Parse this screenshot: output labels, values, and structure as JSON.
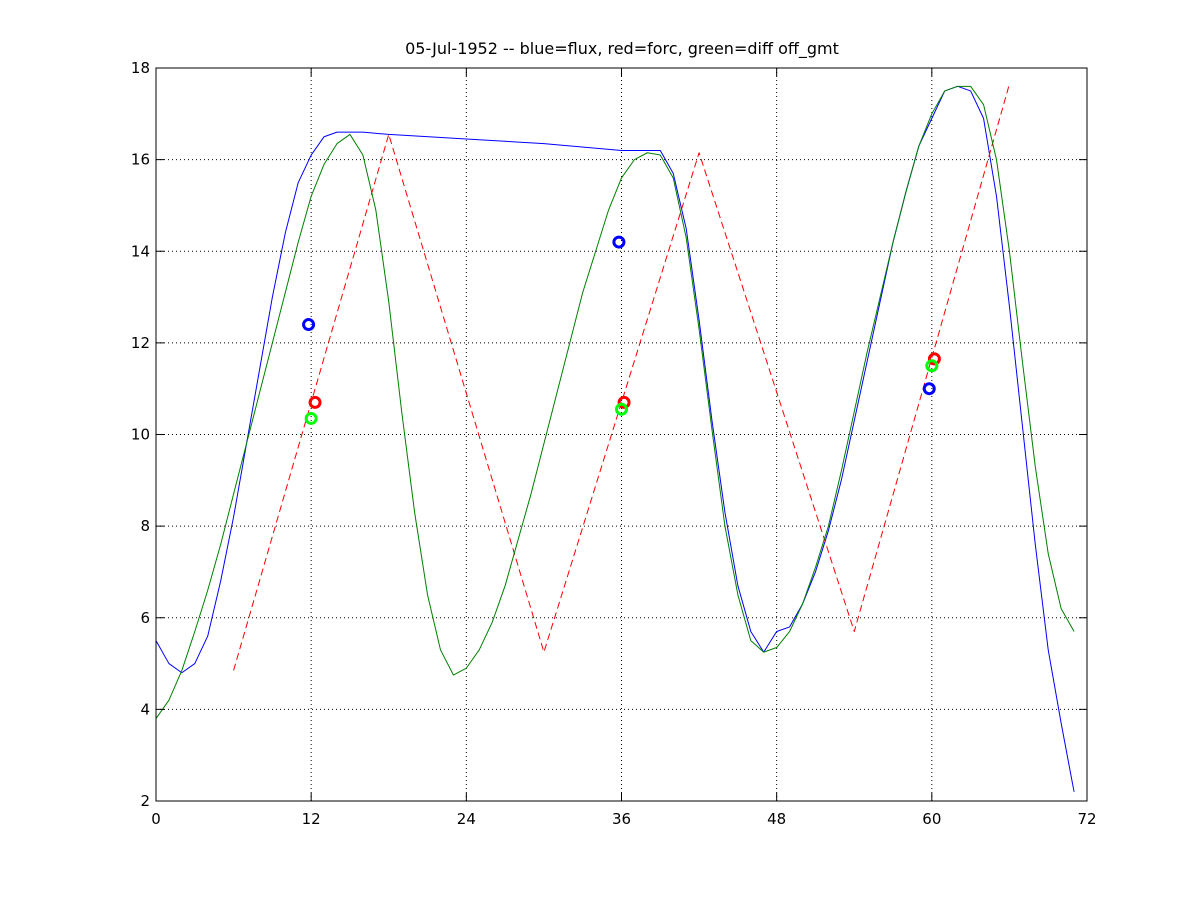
{
  "chart_data": {
    "type": "line",
    "title": "05-Jul-1952 -- blue=flux, red=forc, green=diff off_gmt",
    "xlabel": "",
    "ylabel": "",
    "xlim": [
      0,
      72
    ],
    "ylim": [
      2,
      18
    ],
    "xticks": [
      0,
      12,
      24,
      36,
      48,
      60,
      72
    ],
    "yticks": [
      2,
      4,
      6,
      8,
      10,
      12,
      14,
      16,
      18
    ],
    "grid": true,
    "series": [
      {
        "color": "#0000ff",
        "style": "solid",
        "points": [
          [
            0,
            5.5
          ],
          [
            1,
            5.0
          ],
          [
            2,
            4.8
          ],
          [
            3,
            5.0
          ],
          [
            4,
            5.6
          ],
          [
            5,
            6.8
          ],
          [
            6,
            8.2
          ],
          [
            7,
            9.8
          ],
          [
            8,
            11.4
          ],
          [
            9,
            13.0
          ],
          [
            10,
            14.4
          ],
          [
            11,
            15.5
          ],
          [
            12,
            16.1
          ],
          [
            13,
            16.5
          ],
          [
            14,
            16.6
          ],
          [
            15,
            16.6
          ],
          [
            16,
            16.6
          ],
          [
            18,
            16.55
          ],
          [
            24,
            16.45
          ],
          [
            30,
            16.35
          ],
          [
            36,
            16.2
          ],
          [
            39,
            16.2
          ],
          [
            40,
            15.7
          ],
          [
            41,
            14.5
          ],
          [
            42,
            12.5
          ],
          [
            43,
            10.3
          ],
          [
            44,
            8.3
          ],
          [
            45,
            6.7
          ],
          [
            46,
            5.7
          ],
          [
            47,
            5.25
          ],
          [
            48,
            5.7
          ],
          [
            49,
            5.8
          ],
          [
            50,
            6.3
          ],
          [
            51,
            7.0
          ],
          [
            52,
            7.9
          ],
          [
            53,
            9.0
          ],
          [
            54,
            10.3
          ],
          [
            55,
            11.6
          ],
          [
            56,
            12.9
          ],
          [
            57,
            14.2
          ],
          [
            58,
            15.3
          ],
          [
            59,
            16.3
          ],
          [
            60,
            16.9
          ],
          [
            61,
            17.5
          ],
          [
            62,
            17.6
          ],
          [
            63,
            17.5
          ],
          [
            64,
            16.9
          ],
          [
            65,
            15.2
          ],
          [
            66,
            12.8
          ],
          [
            67,
            10.2
          ],
          [
            68,
            7.6
          ],
          [
            69,
            5.3
          ],
          [
            70,
            3.7
          ],
          [
            71,
            2.2
          ]
        ]
      },
      {
        "color": "#ff0000",
        "style": "dashed",
        "points": [
          [
            6,
            4.85
          ],
          [
            18,
            16.55
          ],
          [
            30,
            5.25
          ],
          [
            42,
            16.15
          ],
          [
            54,
            5.7
          ],
          [
            66,
            17.65
          ]
        ]
      },
      {
        "color": "#007f00",
        "style": "solid",
        "points": [
          [
            0,
            3.8
          ],
          [
            1,
            4.2
          ],
          [
            2,
            4.85
          ],
          [
            3,
            5.7
          ],
          [
            4,
            6.6
          ],
          [
            5,
            7.6
          ],
          [
            6,
            8.7
          ],
          [
            7,
            9.8
          ],
          [
            8,
            10.9
          ],
          [
            9,
            12.0
          ],
          [
            10,
            13.1
          ],
          [
            11,
            14.2
          ],
          [
            12,
            15.2
          ],
          [
            13,
            15.9
          ],
          [
            14,
            16.35
          ],
          [
            15,
            16.55
          ],
          [
            16,
            16.1
          ],
          [
            17,
            14.9
          ],
          [
            18,
            12.9
          ],
          [
            19,
            10.5
          ],
          [
            20,
            8.3
          ],
          [
            21,
            6.5
          ],
          [
            22,
            5.3
          ],
          [
            23,
            4.75
          ],
          [
            24,
            4.9
          ],
          [
            25,
            5.3
          ],
          [
            26,
            5.9
          ],
          [
            27,
            6.7
          ],
          [
            28,
            7.7
          ],
          [
            29,
            8.7
          ],
          [
            30,
            9.8
          ],
          [
            31,
            10.9
          ],
          [
            32,
            12.0
          ],
          [
            33,
            13.1
          ],
          [
            34,
            14.0
          ],
          [
            35,
            14.9
          ],
          [
            36,
            15.6
          ],
          [
            37,
            16.0
          ],
          [
            38,
            16.15
          ],
          [
            39,
            16.1
          ],
          [
            40,
            15.6
          ],
          [
            41,
            14.3
          ],
          [
            42,
            12.3
          ],
          [
            43,
            10.1
          ],
          [
            44,
            8.0
          ],
          [
            45,
            6.5
          ],
          [
            46,
            5.5
          ],
          [
            47,
            5.25
          ],
          [
            48,
            5.35
          ],
          [
            49,
            5.7
          ],
          [
            50,
            6.3
          ],
          [
            51,
            7.1
          ],
          [
            52,
            8.0
          ],
          [
            53,
            9.2
          ],
          [
            54,
            10.5
          ],
          [
            55,
            11.8
          ],
          [
            56,
            13.0
          ],
          [
            57,
            14.2
          ],
          [
            58,
            15.3
          ],
          [
            59,
            16.3
          ],
          [
            60,
            17.0
          ],
          [
            61,
            17.5
          ],
          [
            62,
            17.6
          ],
          [
            63,
            17.6
          ],
          [
            64,
            17.2
          ],
          [
            65,
            16.0
          ],
          [
            66,
            14.0
          ],
          [
            67,
            11.6
          ],
          [
            68,
            9.3
          ],
          [
            69,
            7.4
          ],
          [
            70,
            6.2
          ],
          [
            71,
            5.7
          ]
        ]
      }
    ],
    "markers": [
      {
        "x": 11.8,
        "y": 12.4,
        "color": "#0000ff"
      },
      {
        "x": 12.3,
        "y": 10.7,
        "color": "#ff0000"
      },
      {
        "x": 12.0,
        "y": 10.35,
        "color": "#00ff00"
      },
      {
        "x": 35.8,
        "y": 14.2,
        "color": "#0000ff"
      },
      {
        "x": 36.2,
        "y": 10.7,
        "color": "#ff0000"
      },
      {
        "x": 36.0,
        "y": 10.55,
        "color": "#00ff00"
      },
      {
        "x": 59.8,
        "y": 11.0,
        "color": "#0000ff"
      },
      {
        "x": 60.2,
        "y": 11.65,
        "color": "#ff0000"
      },
      {
        "x": 60.0,
        "y": 11.5,
        "color": "#00ff00"
      }
    ]
  }
}
